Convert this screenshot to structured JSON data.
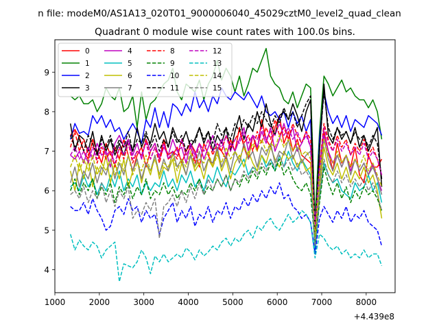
{
  "chart_data": {
    "type": "line",
    "suptitle": "n file: modeM0/AS1A13_020T01_9000006040_45029cztM0_level2_quad_clean",
    "title": "Quadrant 0 module wise count rates with 100.0s bins.",
    "xlabel": "",
    "ylabel": "",
    "x_offset_label": "+4.439e8",
    "xlim": [
      1000,
      8650
    ],
    "ylim": [
      3.42,
      9.82
    ],
    "xticks": [
      "1000",
      "2000",
      "3000",
      "4000",
      "5000",
      "6000",
      "7000",
      "8000"
    ],
    "yticks": [
      "4",
      "5",
      "6",
      "7",
      "8",
      "9"
    ],
    "legend_position": "top-left",
    "grid": false,
    "x_start": 1350,
    "x_step": 100,
    "series": [
      {
        "name": "0",
        "color": "#ff0000",
        "dash": "solid",
        "values": [
          7.4,
          7.55,
          7.35,
          7.0,
          6.8,
          7.3,
          7.0,
          6.7,
          7.2,
          6.9,
          7.1,
          6.8,
          7.3,
          6.9,
          6.5,
          6.9,
          7.1,
          6.6,
          7.0,
          7.2,
          6.8,
          7.3,
          6.8,
          6.9,
          7.1,
          6.7,
          7.0,
          7.2,
          7.0,
          6.6,
          7.2,
          6.9,
          6.6,
          7.1,
          7.0,
          6.8,
          7.3,
          7.0,
          7.6,
          7.1,
          6.8,
          7.4,
          7.0,
          7.8,
          7.3,
          7.1,
          7.6,
          7.9,
          7.2,
          7.5,
          7.0,
          7.3,
          6.9,
          6.8,
          6.7,
          5.4,
          6.4,
          7.5,
          7.0,
          6.5,
          7.2,
          6.7,
          6.9,
          6.6,
          7.1,
          6.4,
          6.2,
          6.9,
          6.6,
          6.6,
          6.8
        ]
      },
      {
        "name": "1",
        "color": "#008000",
        "dash": "solid",
        "values": [
          8.4,
          8.3,
          8.4,
          8.2,
          8.2,
          8.3,
          8.0,
          8.2,
          8.6,
          8.4,
          8.3,
          8.6,
          8.0,
          8.1,
          8.4,
          7.6,
          8.5,
          7.8,
          8.2,
          8.3,
          8.5,
          8.7,
          8.8,
          9.1,
          8.5,
          8.3,
          8.7,
          8.6,
          8.5,
          8.8,
          8.3,
          8.7,
          8.9,
          9.3,
          8.8,
          9.1,
          8.9,
          8.5,
          8.9,
          8.4,
          8.7,
          9.1,
          9.0,
          9.3,
          9.6,
          8.9,
          8.7,
          8.6,
          8.3,
          8.2,
          8.5,
          8.1,
          8.4,
          8.7,
          8.6,
          5.3,
          7.5,
          8.9,
          8.7,
          8.4,
          8.6,
          8.8,
          8.5,
          8.6,
          8.4,
          8.3,
          8.3,
          8.1,
          8.3,
          8.0,
          7.3
        ]
      },
      {
        "name": "2",
        "color": "#0000ff",
        "dash": "solid",
        "values": [
          7.3,
          7.7,
          7.45,
          7.5,
          7.4,
          7.9,
          7.7,
          7.9,
          7.6,
          7.8,
          7.5,
          7.6,
          7.3,
          7.5,
          7.7,
          7.5,
          7.2,
          7.8,
          7.6,
          8.1,
          7.6,
          8.0,
          7.6,
          8.2,
          8.1,
          7.9,
          8.2,
          8.0,
          8.5,
          8.1,
          8.3,
          8.0,
          8.4,
          8.2,
          8.6,
          8.4,
          8.3,
          8.5,
          8.4,
          8.3,
          8.5,
          8.3,
          8.1,
          8.4,
          8.0,
          7.9,
          8.0,
          7.8,
          8.0,
          7.6,
          8.0,
          7.7,
          7.9,
          7.5,
          7.8,
          4.5,
          7.3,
          8.5,
          8.0,
          7.7,
          7.9,
          7.6,
          7.9,
          7.5,
          7.8,
          7.7,
          7.6,
          7.9,
          7.8,
          7.7,
          7.4
        ]
      },
      {
        "name": "3",
        "color": "#000000",
        "dash": "solid",
        "values": [
          7.7,
          7.0,
          7.4,
          7.3,
          7.0,
          7.5,
          6.9,
          7.4,
          7.0,
          7.3,
          6.9,
          7.2,
          6.9,
          7.3,
          7.0,
          7.6,
          7.1,
          7.4,
          7.2,
          7.7,
          7.3,
          7.5,
          7.1,
          7.6,
          7.3,
          7.2,
          7.5,
          7.1,
          7.3,
          7.6,
          7.2,
          7.5,
          7.0,
          7.4,
          7.2,
          7.6,
          7.0,
          7.5,
          7.9,
          7.3,
          7.7,
          7.5,
          8.0,
          7.6,
          8.2,
          7.7,
          7.4,
          7.9,
          8.0,
          7.8,
          8.2,
          7.9,
          7.5,
          8.0,
          8.3,
          4.6,
          7.0,
          8.7,
          7.4,
          7.2,
          7.6,
          7.3,
          7.5,
          7.2,
          7.6,
          7.1,
          7.4,
          7.0,
          7.3,
          7.6,
          6.1
        ]
      },
      {
        "name": "4",
        "color": "#bf00bf",
        "dash": "solid",
        "values": [
          6.9,
          6.8,
          7.0,
          6.7,
          7.1,
          6.8,
          7.2,
          6.9,
          7.0,
          6.6,
          7.2,
          7.4,
          7.1,
          7.3,
          6.9,
          7.2,
          6.8,
          7.3,
          7.0,
          7.2,
          6.8,
          7.1,
          6.9,
          7.3,
          7.0,
          7.1,
          6.7,
          7.2,
          6.9,
          7.2,
          6.8,
          7.1,
          7.4,
          7.0,
          7.3,
          6.9,
          7.2,
          7.0,
          7.3,
          7.6,
          7.0,
          7.4,
          7.1,
          7.5,
          7.2,
          7.6,
          7.0,
          7.3,
          7.7,
          7.3,
          7.6,
          7.0,
          7.2,
          7.5,
          7.1,
          5.2,
          6.4,
          7.4,
          7.0,
          6.7,
          6.9,
          6.6,
          6.9,
          6.5,
          6.8,
          6.5,
          6.7,
          6.4,
          6.7,
          6.3,
          6.0
        ]
      },
      {
        "name": "5",
        "color": "#00bfbf",
        "dash": "solid",
        "values": [
          6.1,
          6.2,
          6.0,
          6.4,
          6.1,
          6.3,
          5.9,
          6.2,
          6.0,
          6.4,
          6.1,
          6.5,
          6.0,
          6.3,
          6.1,
          6.4,
          5.9,
          6.2,
          6.0,
          6.2,
          6.1,
          6.5,
          6.1,
          6.3,
          6.0,
          6.4,
          6.2,
          6.5,
          6.1,
          6.3,
          6.0,
          6.4,
          6.2,
          6.6,
          6.3,
          6.1,
          6.5,
          6.4,
          6.6,
          6.8,
          6.4,
          6.6,
          6.5,
          6.9,
          6.6,
          6.8,
          6.5,
          6.9,
          6.6,
          7.0,
          6.7,
          6.5,
          6.8,
          6.6,
          6.4,
          4.4,
          5.8,
          6.7,
          6.4,
          6.2,
          6.3,
          6.0,
          5.9,
          5.8,
          6.2,
          6.0,
          6.1,
          6.4,
          6.0,
          6.2,
          5.7
        ]
      },
      {
        "name": "6",
        "color": "#bfbf00",
        "dash": "solid",
        "values": [
          6.5,
          6.0,
          6.7,
          6.3,
          6.8,
          6.1,
          6.6,
          6.4,
          6.9,
          6.2,
          6.7,
          6.3,
          6.8,
          6.1,
          6.5,
          6.8,
          6.2,
          6.7,
          6.4,
          6.9,
          6.3,
          6.6,
          6.5,
          6.8,
          6.2,
          6.7,
          6.4,
          6.9,
          6.5,
          6.7,
          6.3,
          6.8,
          6.6,
          7.0,
          6.5,
          6.8,
          6.3,
          6.7,
          6.9,
          6.6,
          7.0,
          6.7,
          6.5,
          6.9,
          6.7,
          7.1,
          6.8,
          6.6,
          7.0,
          6.8,
          6.9,
          6.6,
          6.8,
          6.5,
          6.6,
          4.9,
          6.0,
          7.1,
          6.6,
          6.4,
          6.7,
          6.3,
          6.6,
          6.2,
          6.5,
          6.3,
          6.6,
          6.2,
          6.4,
          6.0,
          5.3
        ]
      },
      {
        "name": "7",
        "color": "#808080",
        "dash": "solid",
        "values": [
          6.2,
          6.6,
          6.1,
          6.5,
          6.3,
          6.7,
          6.2,
          6.6,
          6.4,
          6.8,
          6.3,
          6.7,
          6.4,
          6.9,
          6.5,
          6.8,
          6.3,
          6.7,
          6.5,
          6.9,
          6.4,
          6.8,
          6.5,
          7.0,
          6.6,
          6.8,
          6.4,
          6.9,
          6.6,
          7.0,
          6.5,
          6.8,
          6.7,
          7.1,
          6.6,
          6.9,
          6.5,
          7.0,
          6.7,
          7.2,
          6.8,
          7.0,
          6.6,
          7.1,
          6.9,
          7.2,
          6.7,
          7.0,
          6.9,
          7.3,
          6.8,
          7.1,
          6.7,
          6.9,
          7.0,
          5.0,
          6.2,
          7.3,
          6.8,
          6.5,
          6.9,
          6.6,
          6.9,
          6.4,
          6.8,
          6.5,
          6.7,
          6.4,
          6.6,
          6.3,
          5.9
        ]
      },
      {
        "name": "8",
        "color": "#ff0000",
        "dash": "dashed",
        "values": [
          7.1,
          7.5,
          7.0,
          7.3,
          6.9,
          7.2,
          6.7,
          7.1,
          6.8,
          7.0,
          6.6,
          7.1,
          6.8,
          7.2,
          6.7,
          7.0,
          6.9,
          7.3,
          6.8,
          7.1,
          6.7,
          7.2,
          6.9,
          7.0,
          6.8,
          7.3,
          6.9,
          7.1,
          6.7,
          7.2,
          7.0,
          7.3,
          6.9,
          7.2,
          7.0,
          7.4,
          7.1,
          7.3,
          7.5,
          7.2,
          7.4,
          7.0,
          7.5,
          7.2,
          7.6,
          7.3,
          7.8,
          7.4,
          7.6,
          7.3,
          7.7,
          7.4,
          7.2,
          7.5,
          7.3,
          5.0,
          6.6,
          7.7,
          7.3,
          7.0,
          7.4,
          7.1,
          7.3,
          6.9,
          7.2,
          7.0,
          7.3,
          6.9,
          7.1,
          6.8,
          6.4
        ]
      },
      {
        "name": "9",
        "color": "#008000",
        "dash": "dashed",
        "values": [
          6.0,
          6.3,
          5.9,
          6.2,
          6.0,
          6.3,
          5.8,
          6.1,
          5.9,
          6.2,
          5.7,
          6.1,
          5.9,
          6.2,
          5.8,
          6.1,
          5.9,
          6.3,
          5.8,
          6.0,
          5.9,
          6.2,
          5.9,
          6.1,
          5.8,
          6.0,
          5.9,
          6.2,
          6.0,
          6.3,
          5.9,
          6.1,
          6.0,
          6.3,
          6.1,
          6.4,
          6.0,
          6.3,
          6.1,
          6.4,
          6.2,
          6.5,
          6.3,
          6.6,
          6.4,
          6.7,
          6.5,
          6.8,
          6.4,
          6.6,
          6.3,
          6.1,
          6.0,
          6.2,
          5.9,
          4.7,
          5.7,
          6.6,
          6.2,
          5.9,
          6.2,
          5.8,
          6.1,
          5.7,
          6.0,
          5.8,
          6.1,
          5.9,
          6.0,
          5.8,
          5.5
        ]
      },
      {
        "name": "10",
        "color": "#0000ff",
        "dash": "dashed",
        "values": [
          5.6,
          5.5,
          5.5,
          5.7,
          5.4,
          5.8,
          5.5,
          5.3,
          5.0,
          5.1,
          5.5,
          5.6,
          5.4,
          5.8,
          5.5,
          5.6,
          5.2,
          5.5,
          5.3,
          5.4,
          4.9,
          5.3,
          5.5,
          5.7,
          5.2,
          5.5,
          5.3,
          5.6,
          5.1,
          5.4,
          5.3,
          5.6,
          5.2,
          5.5,
          5.4,
          5.7,
          5.3,
          5.6,
          5.5,
          5.8,
          5.6,
          5.9,
          5.7,
          6.0,
          5.8,
          6.1,
          5.9,
          6.2,
          5.8,
          5.9,
          5.6,
          5.5,
          5.3,
          5.4,
          5.2,
          4.4,
          5.3,
          5.6,
          5.4,
          5.2,
          5.5,
          5.3,
          5.6,
          5.2,
          5.4,
          5.3,
          5.5,
          5.2,
          5.1,
          5.0,
          4.6
        ]
      },
      {
        "name": "11",
        "color": "#000000",
        "dash": "dashed",
        "values": [
          7.4,
          7.1,
          7.3,
          7.0,
          7.4,
          7.2,
          6.9,
          7.3,
          7.1,
          7.4,
          7.0,
          7.3,
          7.1,
          7.5,
          7.0,
          7.3,
          7.2,
          7.5,
          7.1,
          7.4,
          7.0,
          7.3,
          7.1,
          7.5,
          7.2,
          7.4,
          7.0,
          7.3,
          7.2,
          7.6,
          7.3,
          7.5,
          7.2,
          7.7,
          7.4,
          7.6,
          7.3,
          7.7,
          7.5,
          7.8,
          7.6,
          7.9,
          7.7,
          8.0,
          7.8,
          7.6,
          7.9,
          7.7,
          8.1,
          7.8,
          8.0,
          7.6,
          7.9,
          8.2,
          8.4,
          4.9,
          7.1,
          8.5,
          7.6,
          7.3,
          7.6,
          7.4,
          7.5,
          7.2,
          7.5,
          7.3,
          7.4,
          7.1,
          7.4,
          7.2,
          6.3
        ]
      },
      {
        "name": "12",
        "color": "#bf00bf",
        "dash": "dashed",
        "values": [
          6.9,
          7.1,
          6.8,
          7.0,
          6.7,
          7.1,
          6.8,
          7.2,
          6.9,
          7.0,
          6.7,
          7.1,
          6.9,
          7.2,
          6.8,
          7.0,
          6.9,
          7.2,
          6.8,
          7.1,
          6.9,
          7.2,
          6.8,
          7.0,
          6.9,
          7.3,
          6.9,
          7.1,
          6.8,
          7.2,
          7.0,
          7.3,
          7.0,
          7.2,
          7.1,
          7.4,
          7.0,
          7.3,
          7.2,
          7.5,
          7.2,
          7.4,
          7.3,
          7.6,
          7.3,
          7.5,
          7.4,
          7.7,
          7.4,
          7.6,
          7.3,
          7.5,
          7.2,
          7.4,
          7.1,
          5.1,
          6.6,
          7.6,
          7.2,
          7.0,
          7.3,
          7.0,
          7.2,
          6.9,
          7.1,
          6.9,
          7.2,
          6.8,
          7.0,
          6.8,
          6.4
        ]
      },
      {
        "name": "13",
        "color": "#00bfbf",
        "dash": "dashed",
        "values": [
          4.9,
          4.5,
          4.75,
          4.6,
          4.5,
          4.7,
          4.6,
          4.3,
          4.5,
          4.6,
          4.7,
          3.7,
          4.15,
          4.1,
          4.05,
          4.2,
          4.5,
          4.3,
          3.9,
          4.35,
          4.2,
          4.4,
          4.2,
          4.3,
          4.4,
          4.3,
          4.55,
          4.45,
          4.25,
          4.5,
          4.35,
          4.45,
          4.6,
          4.5,
          4.7,
          4.8,
          4.6,
          4.8,
          4.7,
          4.9,
          5.0,
          4.8,
          5.1,
          5.0,
          5.2,
          5.3,
          5.1,
          5.0,
          5.2,
          5.4,
          5.2,
          5.3,
          5.5,
          5.4,
          5.2,
          4.3,
          4.9,
          4.8,
          4.6,
          4.5,
          4.6,
          4.4,
          4.5,
          4.3,
          4.4,
          4.3,
          4.5,
          4.3,
          4.4,
          4.4,
          4.1
        ]
      },
      {
        "name": "14",
        "color": "#bfbf00",
        "dash": "dashed",
        "values": [
          6.6,
          6.9,
          6.5,
          6.8,
          6.5,
          6.9,
          6.4,
          6.7,
          6.5,
          6.8,
          6.4,
          6.8,
          6.5,
          6.9,
          6.4,
          6.7,
          6.5,
          6.9,
          6.5,
          6.8,
          6.4,
          6.7,
          6.6,
          6.9,
          6.5,
          6.8,
          6.6,
          7.0,
          6.6,
          6.8,
          6.7,
          7.0,
          6.6,
          6.9,
          6.7,
          7.1,
          6.8,
          7.0,
          6.8,
          7.1,
          6.9,
          7.2,
          7.0,
          7.3,
          7.0,
          7.2,
          7.1,
          7.4,
          7.1,
          7.3,
          7.0,
          7.2,
          6.9,
          7.0,
          6.8,
          4.8,
          6.4,
          7.3,
          6.9,
          6.7,
          7.0,
          6.7,
          6.9,
          6.6,
          6.8,
          6.6,
          6.9,
          6.5,
          6.7,
          6.4,
          6.1
        ]
      },
      {
        "name": "15",
        "color": "#808080",
        "dash": "dashed",
        "values": [
          5.9,
          6.0,
          5.8,
          6.1,
          5.7,
          6.0,
          5.8,
          6.2,
          5.7,
          6.0,
          5.6,
          6.0,
          5.8,
          6.1,
          5.3,
          5.5,
          5.4,
          5.7,
          5.5,
          5.8,
          4.8,
          5.6,
          5.7,
          5.9,
          5.6,
          6.0,
          5.7,
          6.1,
          5.8,
          6.2,
          5.9,
          6.3,
          6.0,
          6.3,
          6.1,
          6.4,
          6.0,
          6.3,
          6.2,
          6.5,
          6.3,
          6.6,
          6.4,
          6.7,
          6.5,
          6.8,
          6.6,
          6.9,
          6.6,
          6.8,
          6.5,
          6.7,
          6.4,
          6.5,
          6.3,
          4.6,
          5.9,
          6.8,
          6.4,
          6.2,
          6.5,
          6.2,
          6.4,
          6.1,
          6.3,
          6.1,
          6.3,
          6.0,
          6.2,
          5.9,
          5.5
        ]
      }
    ]
  }
}
